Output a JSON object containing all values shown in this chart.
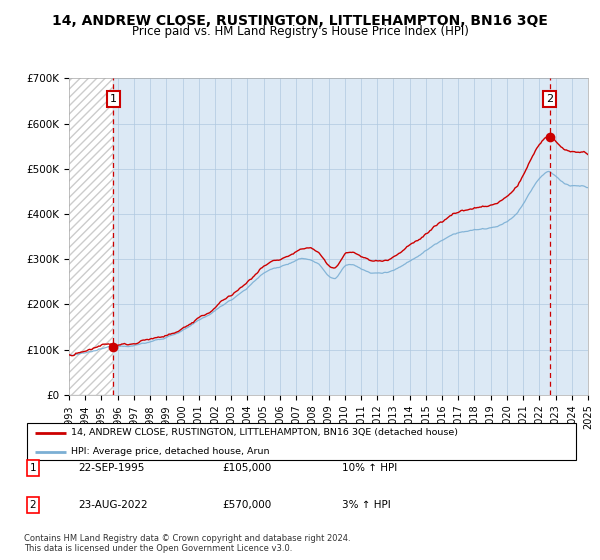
{
  "title": "14, ANDREW CLOSE, RUSTINGTON, LITTLEHAMPTON, BN16 3QE",
  "subtitle": "Price paid vs. HM Land Registry's House Price Index (HPI)",
  "ylim": [
    0,
    700000
  ],
  "yticks": [
    0,
    100000,
    200000,
    300000,
    400000,
    500000,
    600000,
    700000
  ],
  "ytick_labels": [
    "£0",
    "£100K",
    "£200K",
    "£300K",
    "£400K",
    "£500K",
    "£600K",
    "£700K"
  ],
  "hpi_color": "#7bafd4",
  "price_color": "#cc0000",
  "marker_color": "#cc0000",
  "dashed_color": "#cc0000",
  "annotation_box_color": "#cc0000",
  "sale1_date": "22-SEP-1995",
  "sale1_price": 105000,
  "sale1_hpi_text": "10% ↑ HPI",
  "sale1_label": "1",
  "sale1_year": 1995.73,
  "sale2_date": "23-AUG-2022",
  "sale2_price": 570000,
  "sale2_hpi_text": "3% ↑ HPI",
  "sale2_label": "2",
  "sale2_year": 2022.64,
  "legend_line1": "14, ANDREW CLOSE, RUSTINGTON, LITTLEHAMPTON, BN16 3QE (detached house)",
  "legend_line2": "HPI: Average price, detached house, Arun",
  "footer": "Contains HM Land Registry data © Crown copyright and database right 2024.\nThis data is licensed under the Open Government Licence v3.0.",
  "xmin": 1993,
  "xmax": 2025,
  "hatch_region_end": 1995.73,
  "plot_bg_color": "#dce9f5",
  "grid_color": "#b0c8e0",
  "title_fontsize": 10,
  "subtitle_fontsize": 8.5,
  "tick_fontsize": 7.5
}
